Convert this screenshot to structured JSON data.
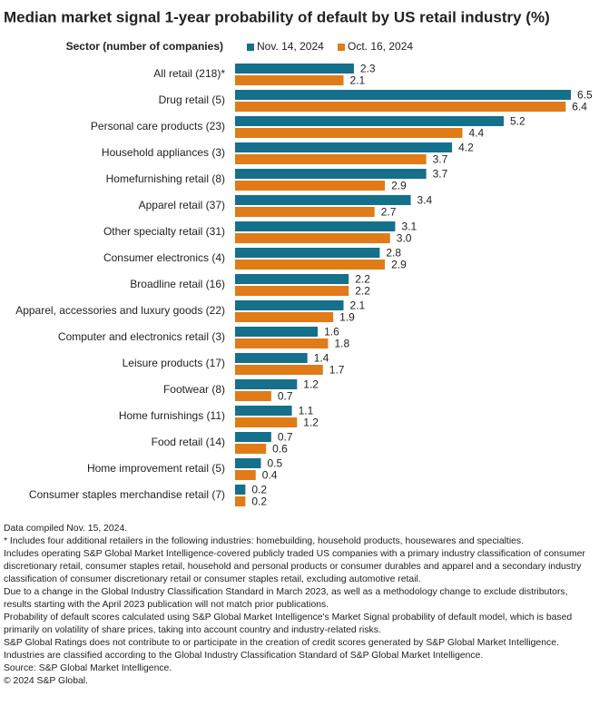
{
  "chart_data": {
    "type": "bar",
    "orientation": "horizontal",
    "title": "Median market signal 1-year probability of default by US retail industry (%)",
    "category_header": "Sector (number of companies)",
    "categories": [
      "All retail (218)*",
      "Drug retail (5)",
      "Personal care products (23)",
      "Household appliances (3)",
      "Homefurnishing retail (8)",
      "Apparel retail (37)",
      "Other specialty retail (31)",
      "Consumer electronics (4)",
      "Broadline retail (16)",
      "Apparel, accessories and luxury goods (22)",
      "Computer and electronics retail (3)",
      "Leisure products (17)",
      "Footwear (8)",
      "Home furnishings (11)",
      "Food retail (14)",
      "Home improvement retail (5)",
      "Consumer staples merchandise retail (7)"
    ],
    "series": [
      {
        "name": "Nov. 14, 2024",
        "color": "#15708c",
        "values": [
          2.3,
          6.5,
          5.2,
          4.2,
          3.7,
          3.4,
          3.1,
          2.8,
          2.2,
          2.1,
          1.6,
          1.4,
          1.2,
          1.1,
          0.7,
          0.5,
          0.2
        ],
        "value_labels": [
          "2.3",
          "6.5",
          "5.2",
          "4.2",
          "3.7",
          "3.4",
          "3.1",
          "2.8",
          "2.2",
          "2.1",
          "1.6",
          "1.4",
          "1.2",
          "1.1",
          "0.7",
          "0.5",
          "0.2"
        ]
      },
      {
        "name": "Oct. 16, 2024",
        "color": "#e07b17",
        "values": [
          2.1,
          6.4,
          4.4,
          3.7,
          2.9,
          2.7,
          3.0,
          2.9,
          2.2,
          1.9,
          1.8,
          1.7,
          0.7,
          1.2,
          0.6,
          0.4,
          0.2
        ],
        "value_labels": [
          "2.1",
          "6.4",
          "4.4",
          "3.7",
          "2.9",
          "2.7",
          "3.0",
          "2.9",
          "2.2",
          "1.9",
          "1.8",
          "1.7",
          "0.7",
          "1.2",
          "0.6",
          "0.4",
          "0.2"
        ]
      }
    ],
    "notes": [
      "Data compiled Nov. 15, 2024.",
      "* Includes four additional retailers in the following industries: homebuilding, household products, housewares and specialties.",
      "Includes operating S&P Global Market Intelligence-covered publicly traded US companies with a primary industry classification of consumer discretionary retail, consumer staples retail, household and personal products or consumer durables and apparel and a secondary industry classification of consumer discretionary retail or consumer staples retail, excluding automotive retail.",
      "Due to a change in the Global Industry Classification Standard in March 2023, as well as a methodology change to exclude distributors, results starting with the April 2023 publication will not match prior publications.",
      "Probability of default scores calculated using S&P Global Market Intelligence's Market Signal probability of default model, which is based primarily on volatility of share prices, taking into account country and industry-related risks.",
      "S&P Global Ratings does not contribute to or participate in the creation of credit scores generated by S&P Global Market Intelligence.",
      "Industries are classified according to the Global Industry Classification Standard of S&P Global Market Intelligence.",
      "Source: S&P Global Market Intelligence.",
      "© 2024 S&P Global."
    ]
  }
}
